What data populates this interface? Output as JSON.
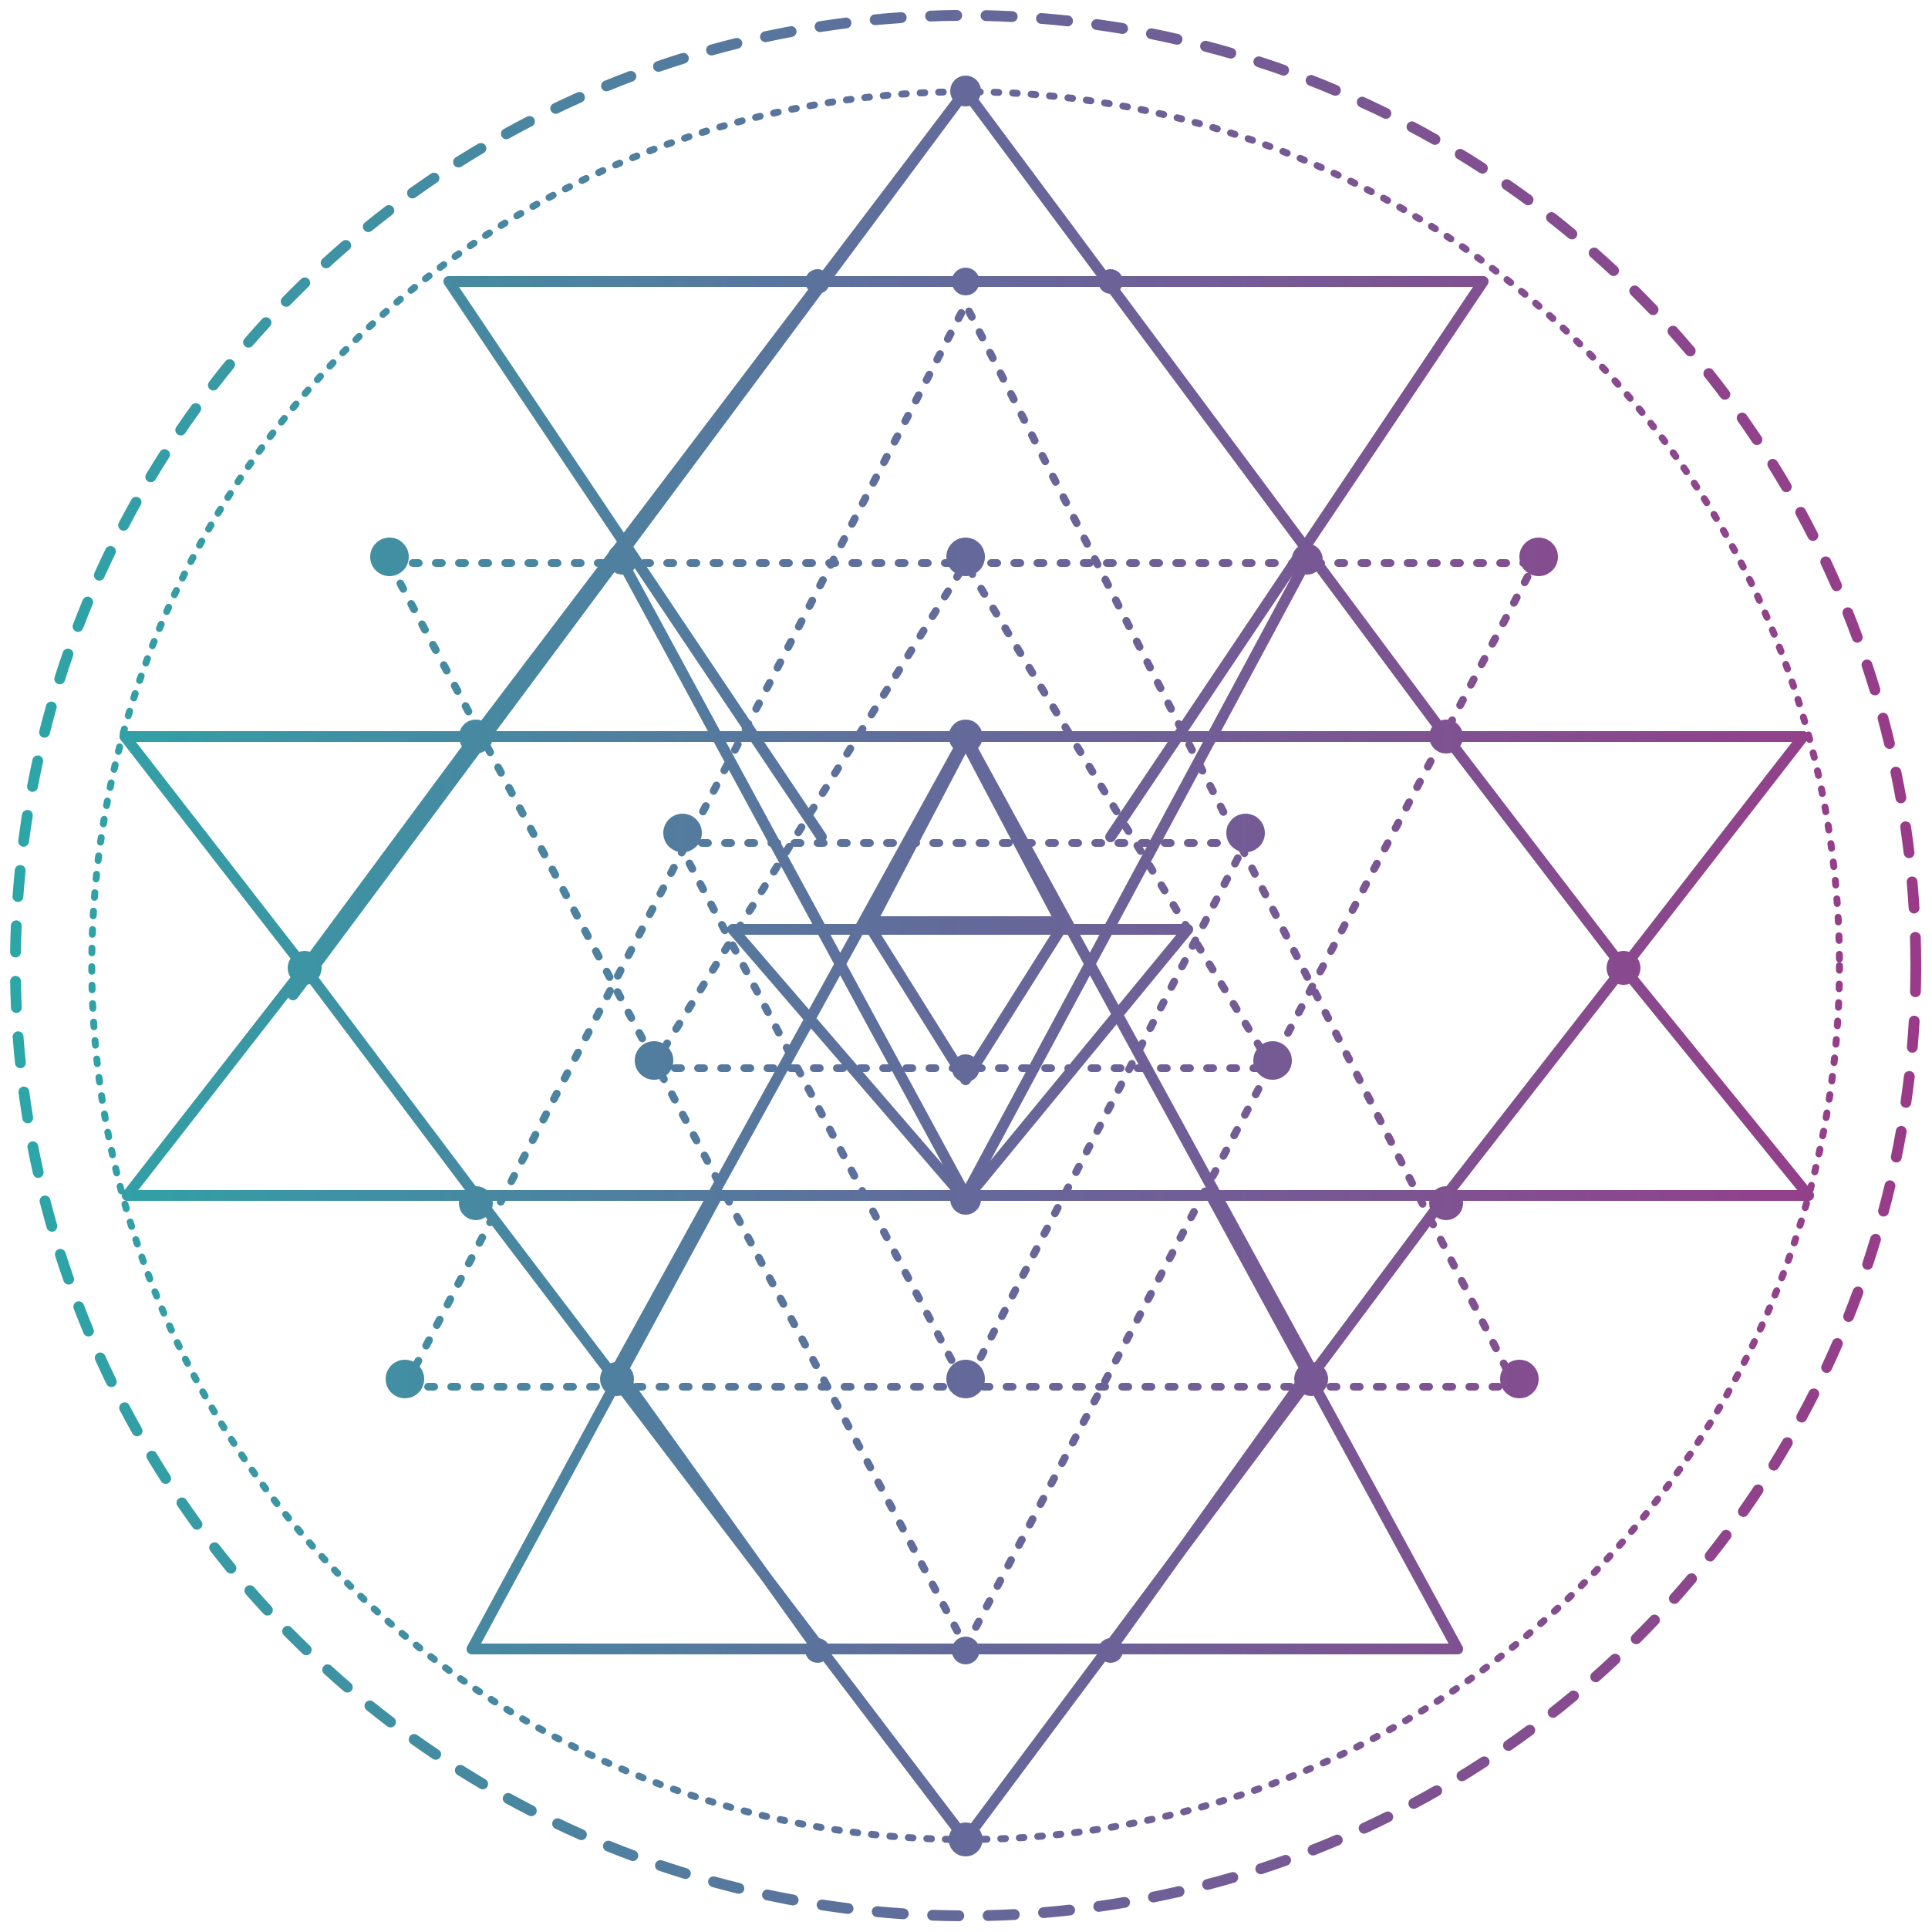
{
  "artwork": {
    "kind": "sacred geometry star emblem",
    "colors": {
      "gradient_start": "#2aa8a8",
      "gradient_mid": "#64699a",
      "gradient_end": "#9a3a88",
      "background": "#ffffff"
    }
  }
}
